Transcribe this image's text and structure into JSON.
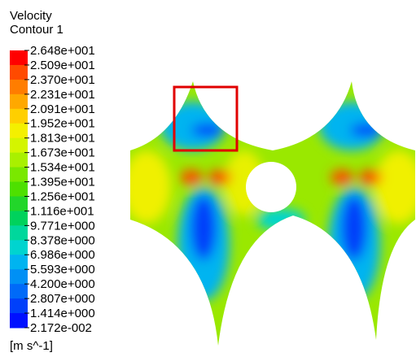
{
  "legend": {
    "title": "Velocity",
    "subtitle": "Contour 1",
    "labels": [
      "2.648e+001",
      "2.509e+001",
      "2.370e+001",
      "2.231e+001",
      "2.091e+001",
      "1.952e+001",
      "1.813e+001",
      "1.673e+001",
      "1.534e+001",
      "1.395e+001",
      "1.256e+001",
      "1.116e+001",
      "9.771e+000",
      "8.378e+000",
      "6.986e+000",
      "5.593e+000",
      "4.200e+000",
      "2.807e+000",
      "1.414e+000",
      "2.172e-002"
    ],
    "colors": [
      "#ff0000",
      "#ff4a00",
      "#ff7d00",
      "#ffa800",
      "#ffcf00",
      "#f4f000",
      "#d4f500",
      "#a9f000",
      "#7ae800",
      "#4ee000",
      "#22d62a",
      "#00d25c",
      "#00d79c",
      "#00d4cf",
      "#00b4f0",
      "#0090f5",
      "#006af8",
      "#0040fa",
      "#0010ff"
    ],
    "unit": "[m s^-1]"
  }
}
